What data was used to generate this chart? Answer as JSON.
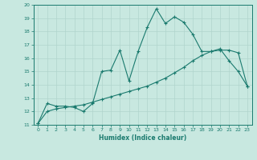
{
  "title": "",
  "xlabel": "Humidex (Indice chaleur)",
  "ylabel": "",
  "xlim": [
    -0.5,
    23.5
  ],
  "ylim": [
    11,
    20
  ],
  "xticks": [
    0,
    1,
    2,
    3,
    4,
    5,
    6,
    7,
    8,
    9,
    10,
    11,
    12,
    13,
    14,
    15,
    16,
    17,
    18,
    19,
    20,
    21,
    22,
    23
  ],
  "yticks": [
    11,
    12,
    13,
    14,
    15,
    16,
    17,
    18,
    19,
    20
  ],
  "line1_x": [
    0,
    1,
    2,
    3,
    4,
    5,
    6,
    7,
    8,
    9,
    10,
    11,
    12,
    13,
    14,
    15,
    16,
    17,
    18,
    19,
    20,
    21,
    22,
    23
  ],
  "line1_y": [
    11.1,
    12.6,
    12.4,
    12.4,
    12.3,
    12.0,
    12.6,
    15.0,
    15.1,
    16.6,
    14.3,
    16.5,
    18.3,
    19.7,
    18.6,
    19.1,
    18.7,
    17.8,
    16.5,
    16.5,
    16.7,
    15.8,
    15.0,
    13.9
  ],
  "line2_x": [
    0,
    1,
    2,
    3,
    4,
    5,
    6,
    7,
    8,
    9,
    10,
    11,
    12,
    13,
    14,
    15,
    16,
    17,
    18,
    19,
    20,
    21,
    22,
    23
  ],
  "line2_y": [
    11.1,
    12.0,
    12.2,
    12.3,
    12.4,
    12.5,
    12.7,
    12.9,
    13.1,
    13.3,
    13.5,
    13.7,
    13.9,
    14.2,
    14.5,
    14.9,
    15.3,
    15.8,
    16.2,
    16.5,
    16.6,
    16.6,
    16.4,
    13.9
  ],
  "line_color": "#1a7a6e",
  "bg_color": "#c8e8e0",
  "grid_color": "#b0d4cc",
  "marker": "+"
}
